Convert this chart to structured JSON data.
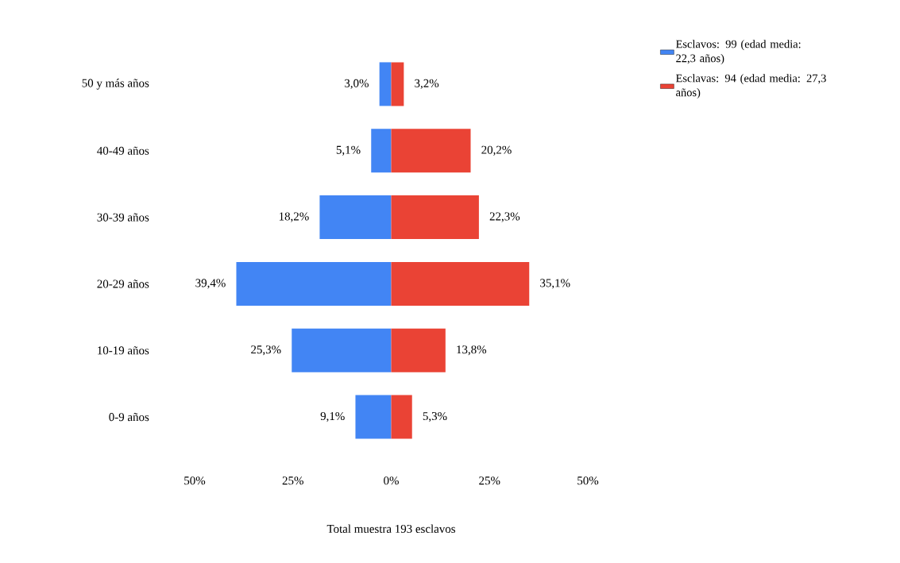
{
  "chart_data": {
    "type": "bar",
    "orientation": "horizontal",
    "categories": [
      "50 y más años",
      "40-49 años",
      "30-39 años",
      "20-29 años",
      "10-19 años",
      "0-9 años"
    ],
    "series": [
      {
        "name": "Esclavos: 99 (edad media: 22,3 años)",
        "color": "#4285f4",
        "values": [
          3.0,
          5.1,
          18.2,
          39.4,
          25.3,
          9.1
        ],
        "base": [
          -3.0,
          -5.1,
          -18.2,
          -39.4,
          -25.3,
          -9.1
        ],
        "value_labels": [
          "3,0%",
          "5,1%",
          "18,2%",
          "39,4%",
          "25,3%",
          "9,1%"
        ]
      },
      {
        "name": "Esclavas: 94 (edad media: 27,3 años)",
        "color": "#ea4335",
        "values": [
          3.2,
          20.2,
          22.3,
          35.1,
          13.8,
          5.3
        ],
        "value_labels": [
          "3,2%",
          "20,2%",
          "22,3%",
          "35,1%",
          "13,8%",
          "5,3%"
        ]
      }
    ],
    "xlim": [
      -50,
      50
    ],
    "xticks": [
      {
        "value": -50,
        "label": "50%"
      },
      {
        "value": -25,
        "label": "25%"
      },
      {
        "value": 0,
        "label": "0%"
      },
      {
        "value": 25,
        "label": "25%"
      },
      {
        "value": 50,
        "label": "50%"
      }
    ],
    "xlabel": "Total muestra 193 esclavos",
    "grid": false,
    "legend": "top right"
  }
}
